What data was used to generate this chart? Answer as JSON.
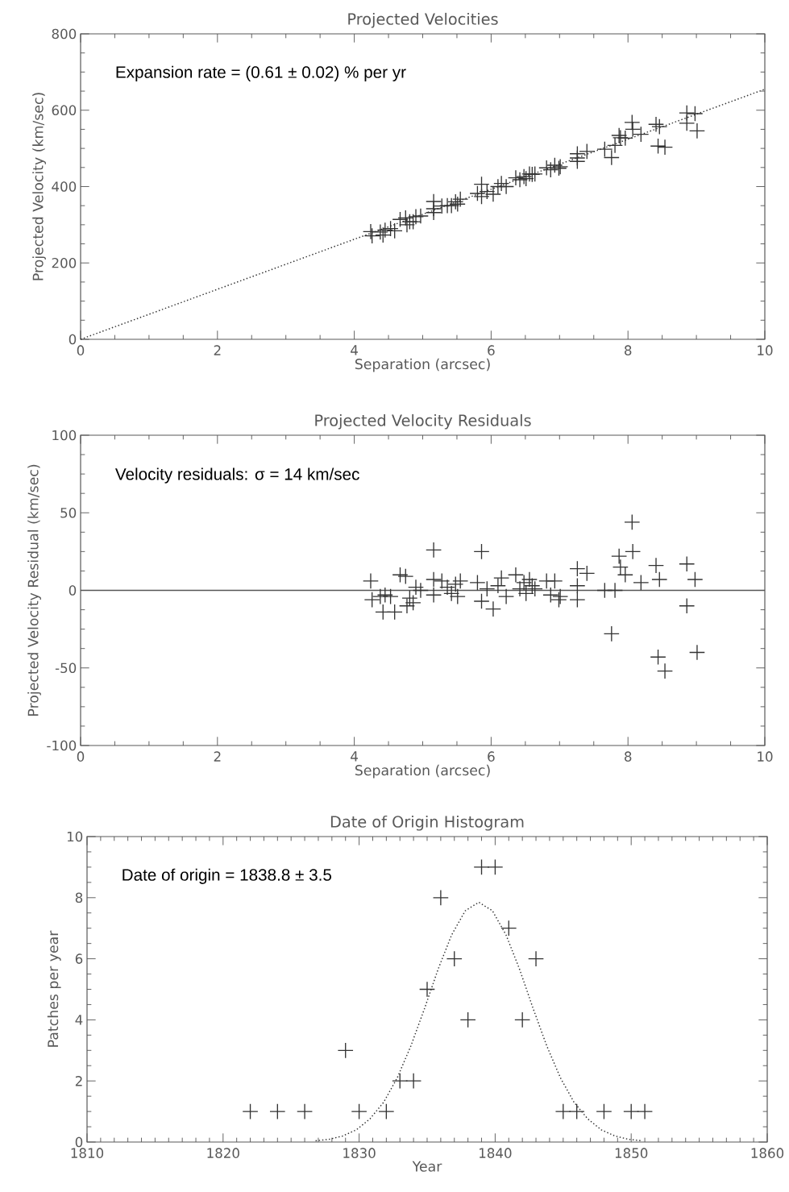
{
  "chart_data": [
    {
      "type": "scatter",
      "title": "Projected Velocities",
      "xlabel": "Separation (arcsec)",
      "ylabel": "Projected Velocity (km/sec)",
      "annotations": [
        "Expansion rate = (0.61 ± 0.02) % per yr"
      ],
      "xlim": [
        0,
        10
      ],
      "xticks": [
        0,
        2,
        4,
        6,
        8,
        10
      ],
      "ylim": [
        0,
        800
      ],
      "yticks": [
        0,
        200,
        400,
        600,
        800
      ],
      "grid": false,
      "marker": "cross",
      "series": [
        {
          "color": "#333333",
          "x": [
            4.24,
            4.26,
            4.38,
            4.45,
            4.53,
            4.42,
            4.59,
            4.67,
            4.75,
            4.77,
            4.81,
            4.86,
            4.9,
            4.97,
            5.16,
            5.16,
            5.16,
            5.28,
            5.36,
            5.42,
            5.48,
            5.51,
            5.55,
            5.8,
            5.86,
            5.86,
            5.94,
            6.03,
            6.1,
            6.15,
            6.22,
            6.36,
            6.42,
            6.48,
            6.51,
            6.56,
            6.6,
            6.64,
            6.81,
            6.87,
            6.93,
            6.99,
            7.01,
            7.26,
            7.26,
            7.26,
            7.4,
            7.66,
            7.76,
            7.81,
            7.87,
            7.89,
            7.96,
            8.06,
            8.07,
            8.19,
            8.41,
            8.46,
            8.44,
            8.54,
            8.86,
            8.86,
            8.98,
            9.01
          ],
          "values": [
            282,
            271,
            281,
            286,
            290,
            273,
            284,
            314,
            318,
            300,
            308,
            308,
            321,
            323,
            361,
            342,
            332,
            349,
            350,
            350,
            360,
            354,
            367,
            382,
            406,
            374,
            387,
            380,
            400,
            408,
            400,
            423,
            418,
            426,
            421,
            433,
            432,
            433,
            449,
            444,
            456,
            448,
            452,
            486,
            475,
            466,
            492,
            498,
            476,
            508,
            534,
            528,
            527,
            568,
            550,
            537,
            563,
            557,
            506,
            503,
            593,
            566,
            591,
            546
          ]
        },
        {
          "type": "line",
          "color": "#333333",
          "line_style": "dotted",
          "marker": "none",
          "x": [
            0,
            10
          ],
          "values": [
            0,
            655
          ]
        }
      ]
    },
    {
      "type": "scatter",
      "title": "Projected Velocity Residuals",
      "xlabel": "Separation (arcsec)",
      "ylabel": "Projected Velocity Residual (km/sec)",
      "annotations": [
        "Velocity residuals: σ = 14 km/sec"
      ],
      "xlim": [
        0,
        10
      ],
      "xticks": [
        0,
        2,
        4,
        6,
        8,
        10
      ],
      "ylim": [
        -100,
        100
      ],
      "yticks": [
        -100,
        -50,
        0,
        50,
        100
      ],
      "grid": false,
      "marker": "cross",
      "ref_lines": [
        {
          "axis": "y",
          "value": 0,
          "color": "#555555",
          "line_style": "solid"
        }
      ],
      "series": [
        {
          "color": "#333333",
          "x": [
            4.24,
            4.26,
            4.38,
            4.45,
            4.53,
            4.42,
            4.59,
            4.67,
            4.75,
            4.77,
            4.81,
            4.86,
            4.9,
            4.97,
            5.16,
            5.16,
            5.16,
            5.28,
            5.36,
            5.42,
            5.48,
            5.51,
            5.55,
            5.8,
            5.86,
            5.86,
            5.94,
            6.03,
            6.1,
            6.15,
            6.22,
            6.36,
            6.42,
            6.48,
            6.51,
            6.56,
            6.6,
            6.64,
            6.81,
            6.87,
            6.93,
            6.99,
            7.01,
            7.26,
            7.26,
            7.26,
            7.4,
            7.66,
            7.76,
            7.81,
            7.87,
            7.89,
            7.96,
            8.06,
            8.07,
            8.19,
            8.41,
            8.46,
            8.44,
            8.54,
            8.86,
            8.86,
            8.98,
            9.01
          ],
          "values": [
            6,
            -6,
            -4,
            -3,
            -4,
            -14,
            -14,
            10,
            9,
            -10,
            -5,
            -8,
            2,
            0,
            26,
            7,
            -3,
            6,
            2,
            -2,
            4,
            -4,
            6,
            5,
            25,
            -7,
            1,
            -12,
            3,
            8,
            -4,
            10,
            1,
            5,
            -2,
            7,
            3,
            1,
            6,
            -3,
            6,
            -6,
            -4,
            14,
            3,
            -6,
            11,
            0,
            -28,
            0,
            22,
            15,
            10,
            44,
            25,
            5,
            16,
            7,
            -43,
            -52,
            17,
            -10,
            7,
            -40
          ]
        }
      ]
    },
    {
      "type": "scatter",
      "title": "Date of Origin Histogram",
      "xlabel": "Year",
      "ylabel": "Patches per year",
      "annotations": [
        "Date of origin = 1838.8 ± 3.5"
      ],
      "xlim": [
        1810,
        1860
      ],
      "xticks": [
        1810,
        1820,
        1830,
        1840,
        1850,
        1860
      ],
      "ylim": [
        0,
        10
      ],
      "yticks": [
        0,
        2,
        4,
        6,
        8,
        10
      ],
      "grid": false,
      "marker": "cross",
      "series": [
        {
          "color": "#333333",
          "x": [
            1822,
            1824,
            1826,
            1829,
            1830,
            1832,
            1833,
            1834,
            1835,
            1836,
            1837,
            1838,
            1839,
            1840,
            1841,
            1842,
            1843,
            1845,
            1846,
            1848,
            1850,
            1851
          ],
          "values": [
            1,
            1,
            1,
            3,
            1,
            1,
            2,
            2,
            5,
            8,
            6,
            4,
            9,
            9,
            7,
            4,
            6,
            1,
            1,
            1,
            1,
            1
          ]
        },
        {
          "type": "line",
          "color": "#333333",
          "line_style": "dotted",
          "marker": "none",
          "x": [
            1826.8,
            1827.8,
            1828.8,
            1829.8,
            1830.8,
            1831.8,
            1832.8,
            1833.8,
            1834.8,
            1835.8,
            1836.8,
            1837.8,
            1838.8,
            1839.8,
            1840.8,
            1841.8,
            1842.8,
            1843.8,
            1844.8,
            1845.8,
            1846.8,
            1847.8,
            1848.8,
            1849.8,
            1850.8
          ],
          "values": [
            0.04,
            0.09,
            0.2,
            0.4,
            0.76,
            1.3,
            2.1,
            3.14,
            4.36,
            5.65,
            6.78,
            7.57,
            7.85,
            7.57,
            6.78,
            5.65,
            4.36,
            3.14,
            2.1,
            1.3,
            0.76,
            0.4,
            0.2,
            0.09,
            0.04
          ]
        }
      ]
    }
  ]
}
